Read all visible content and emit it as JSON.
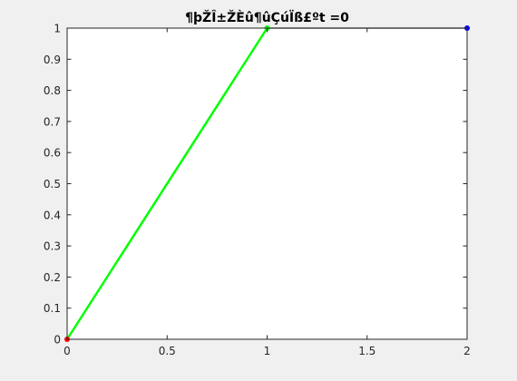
{
  "chart_data": {
    "type": "line",
    "title": "¶þŽÎ±ŽÈû¶ûÇúÏß£ºt =0",
    "xlabel": "",
    "ylabel": "",
    "xlim": [
      0,
      2
    ],
    "ylim": [
      0,
      1
    ],
    "x_ticks": [
      "0",
      "0.5",
      "1",
      "1.5",
      "2"
    ],
    "y_ticks": [
      "0",
      "0.1",
      "0.2",
      "0.3",
      "0.4",
      "0.5",
      "0.6",
      "0.7",
      "0.8",
      "0.9",
      "1"
    ],
    "grid": false,
    "series": [
      {
        "color": "#00ff00",
        "style": "solid",
        "points": [
          [
            0,
            0
          ],
          [
            1,
            1
          ]
        ]
      },
      {
        "color": "#000000",
        "style": "solid",
        "points": [
          [
            1,
            1
          ],
          [
            2,
            1
          ]
        ]
      }
    ],
    "markers": [
      {
        "x": 0,
        "y": 0,
        "color": "#ff0000"
      },
      {
        "x": 1,
        "y": 1,
        "color": "#00ff00"
      },
      {
        "x": 2,
        "y": 1,
        "color": "#0000ff"
      }
    ]
  }
}
